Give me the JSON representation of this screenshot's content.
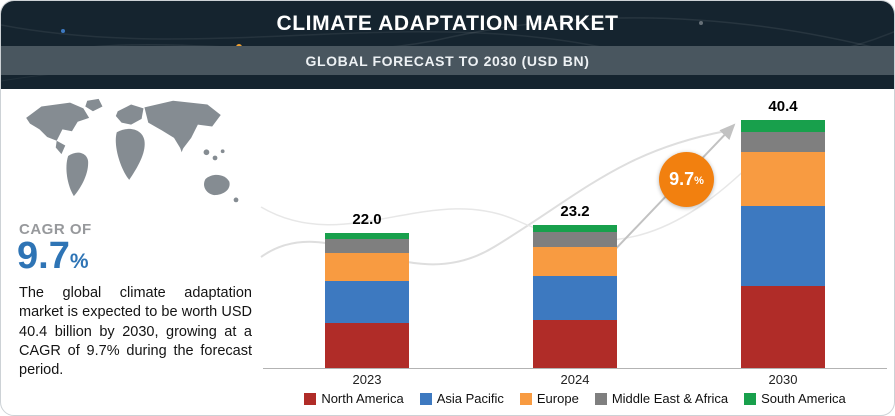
{
  "header": {
    "title": "CLIMATE ADAPTATION MARKET",
    "subtitle": "GLOBAL FORECAST TO 2030  (USD BN)"
  },
  "left_panel": {
    "cagr_label": "CAGR OF",
    "cagr_value": "9.7",
    "cagr_unit": "%",
    "description": "The global climate adaptation market is expected to be worth USD 40.4 billion by 2030, growing at a CAGR of 9.7% during the forecast period."
  },
  "badge": {
    "value": "9.7",
    "unit": "%"
  },
  "chart_data": {
    "type": "bar",
    "stacked": true,
    "title": "CLIMATE ADAPTATION MARKET",
    "ylabel": "USD BN",
    "categories": [
      "2023",
      "2024",
      "2030"
    ],
    "totals": [
      22.0,
      23.2,
      40.4
    ],
    "total_labels": [
      "22.0",
      "23.2",
      "40.4"
    ],
    "growth_annotation": "9.7%",
    "legend_position": "bottom",
    "series": [
      {
        "name": "North America",
        "color": "#b02c28",
        "values": [
          7.4,
          7.8,
          13.4
        ]
      },
      {
        "name": "Asia Pacific",
        "color": "#3d79c0",
        "values": [
          6.8,
          7.2,
          12.9
        ]
      },
      {
        "name": "Europe",
        "color": "#f89b41",
        "values": [
          4.5,
          4.7,
          8.9
        ]
      },
      {
        "name": "Middle East & Africa",
        "color": "#7f7f7f",
        "values": [
          2.3,
          2.4,
          3.2
        ]
      },
      {
        "name": "South America",
        "color": "#18a04c",
        "values": [
          1.0,
          1.1,
          2.0
        ]
      }
    ]
  }
}
